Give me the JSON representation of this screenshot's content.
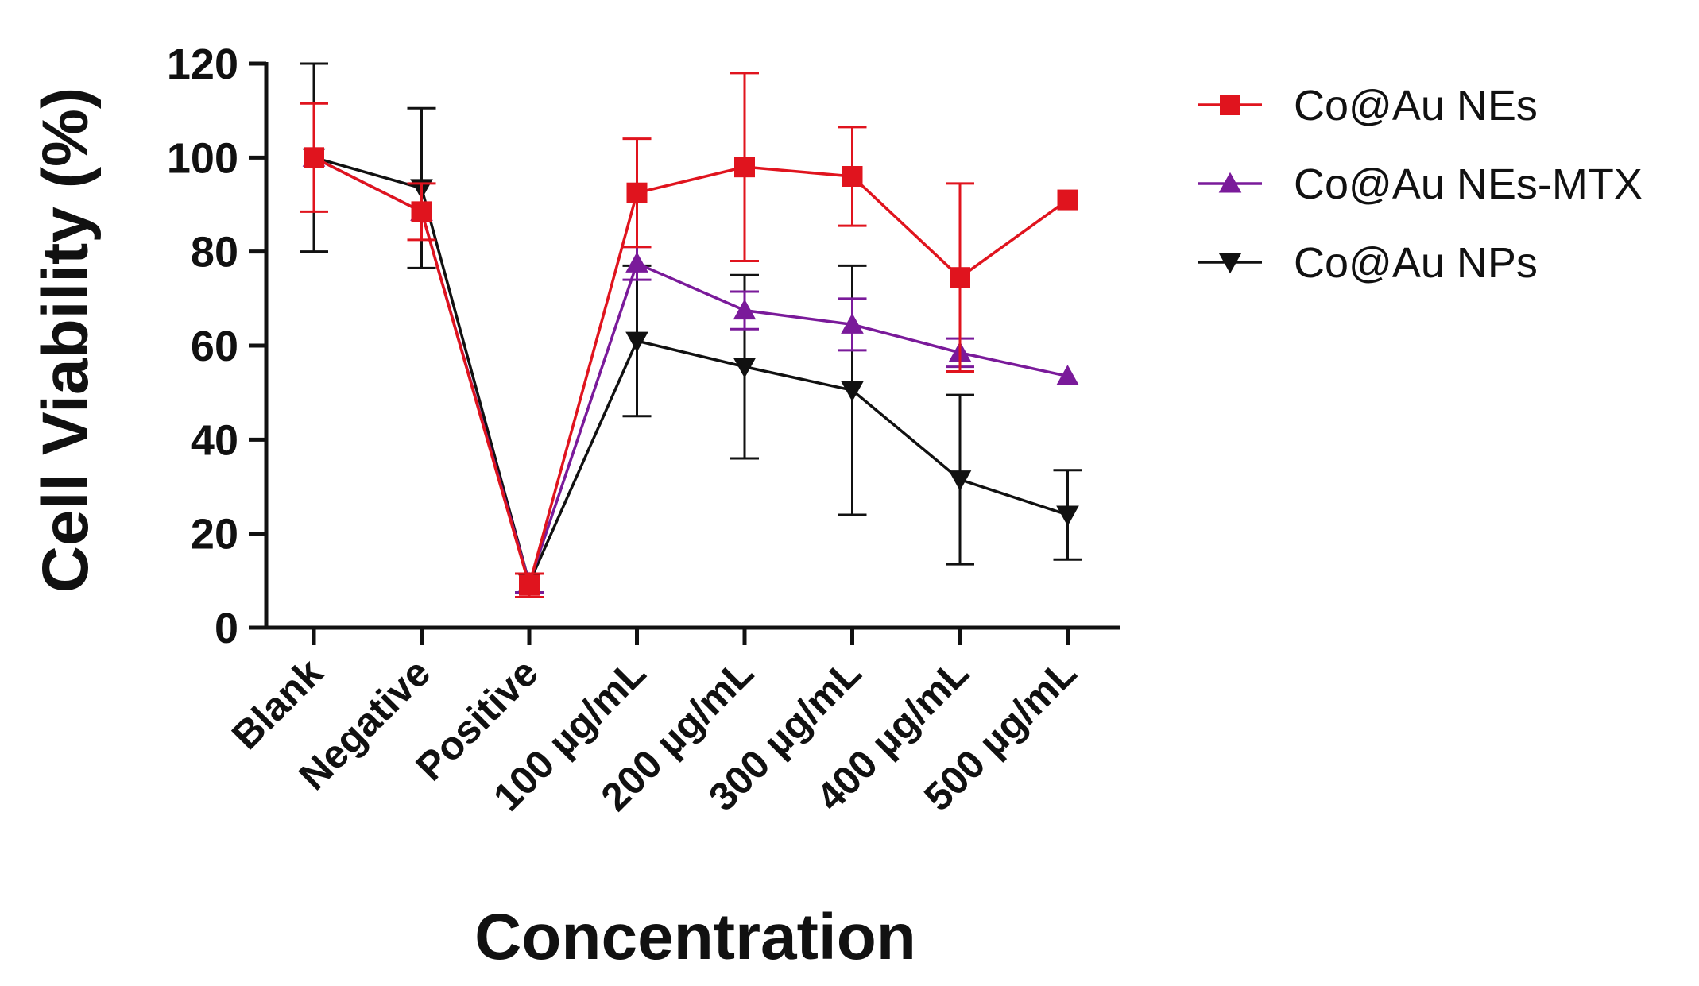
{
  "chart_data": {
    "type": "line",
    "title": "",
    "xlabel": "Concentration",
    "ylabel": "Cell Viability (%)",
    "ylim": [
      0,
      120
    ],
    "yticks": [
      0,
      20,
      40,
      60,
      80,
      100,
      120
    ],
    "categories": [
      "Blank",
      "Negative",
      "Positive",
      "100 µg/mL",
      "200 µg/mL",
      "300 µg/mL",
      "400 µg/mL",
      "500 µg/mL"
    ],
    "legend_position": "top-right",
    "series": [
      {
        "name": "Co@Au NEs",
        "color": "#e0141e",
        "marker": "square",
        "values": [
          100,
          88.5,
          9,
          92.5,
          98,
          96,
          74.5,
          91
        ],
        "errors": [
          11.5,
          6,
          2.5,
          11.5,
          20,
          10.5,
          20,
          0
        ]
      },
      {
        "name": "Co@Au NEs-MTX",
        "color": "#7a1a9a",
        "marker": "triangle-up",
        "values": [
          100,
          88.5,
          9.5,
          77.5,
          67.5,
          64.5,
          58.5,
          53.5
        ],
        "errors": [
          0,
          0,
          2,
          3.5,
          4,
          5.5,
          3,
          0
        ]
      },
      {
        "name": "Co@Au NPs",
        "color": "#111111",
        "marker": "triangle-down",
        "values": [
          100,
          93.5,
          9.5,
          61,
          55.5,
          50.5,
          31.5,
          24
        ],
        "errors": [
          20,
          17,
          2,
          16,
          19.5,
          26.5,
          18,
          9.5
        ]
      }
    ]
  }
}
